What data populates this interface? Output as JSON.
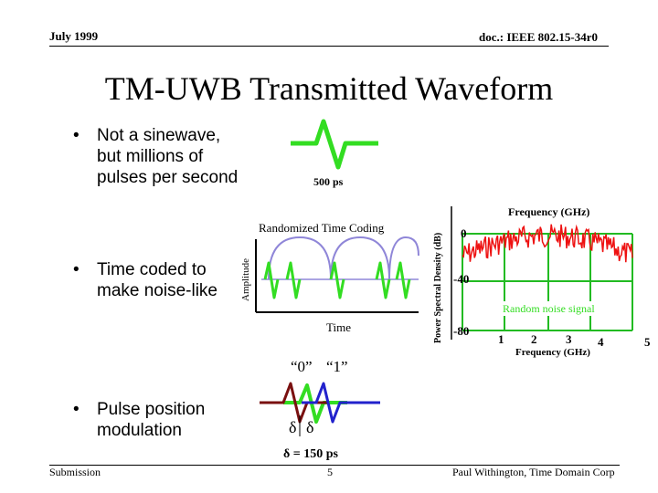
{
  "header": {
    "date": "July 1999",
    "doc_id": "doc.: IEEE 802.15-34r0"
  },
  "title": "TM-UWB Transmitted Waveform",
  "bullets": [
    {
      "text": "Not a sinewave,\nbut millions of\npulses per second"
    },
    {
      "text": "Time coded to\nmake noise-like"
    },
    {
      "text": "Pulse position\nmodulation"
    }
  ],
  "pulse_figure": {
    "label": "500 ps"
  },
  "coding_figure": {
    "title": "Randomized Time Coding",
    "ylabel": "Amplitude",
    "xlabel": "Time"
  },
  "ppm_figure": {
    "label_zero": "“0”",
    "label_one": "“1”",
    "delta_left": "δ",
    "delta_right": "δ",
    "delta_eq": "δ = 150 ps"
  },
  "spectrum_figure": {
    "top_label": "Frequency (GHz)",
    "ylabel": "Power Spectral Density (dB)",
    "y_ticks": [
      "0",
      "-40",
      "-80"
    ],
    "x_ticks": [
      "1",
      "2",
      "3",
      "4",
      "5"
    ],
    "annotation": "Random noise signal",
    "xlabel": "Frequency (GHz)"
  },
  "footer": {
    "left": "Submission",
    "page": "5",
    "right": "Paul Withington, Time Domain Corp"
  },
  "colors": {
    "pulse": "#33dd22",
    "noise": "#ee1111",
    "grid": "#22bb22",
    "arc": "#8f86d8",
    "ppm_zero": "#7a1010",
    "ppm_one": "#2222cc"
  }
}
